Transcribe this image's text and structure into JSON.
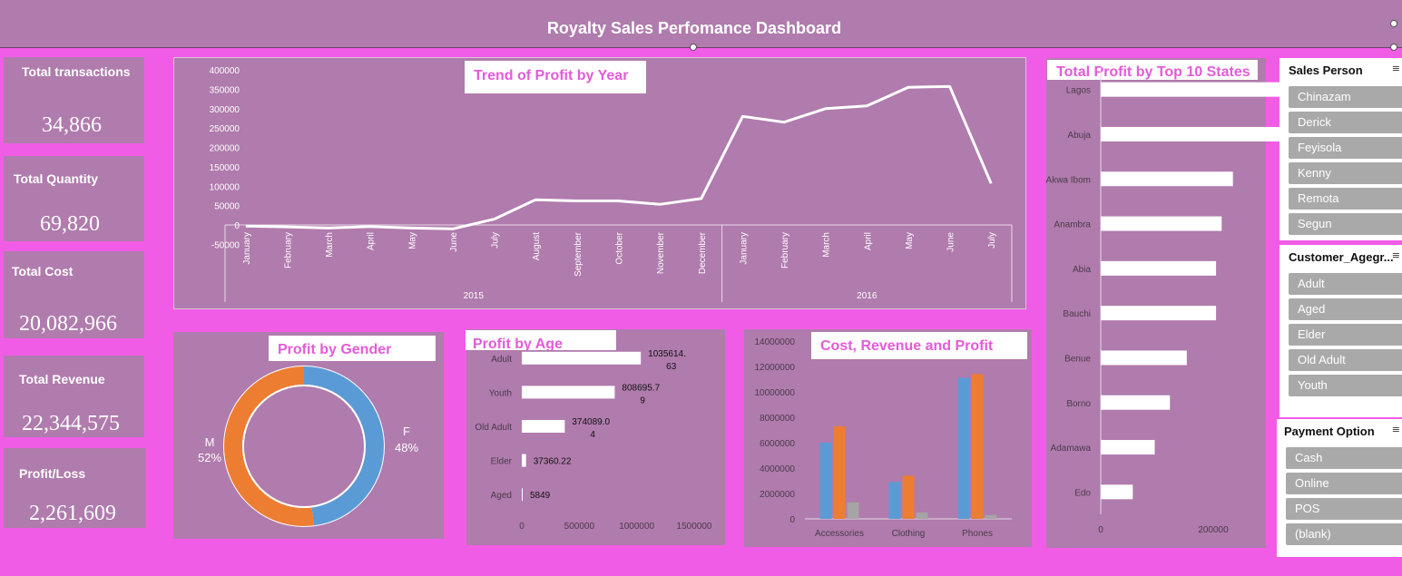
{
  "header": {
    "title": "Royalty Sales Perfomance Dashboard"
  },
  "kpis": [
    {
      "label": "Total transactions",
      "value": "34,866"
    },
    {
      "label": "Total Quantity",
      "value": "69,820"
    },
    {
      "label": "Total Cost",
      "value": "20,082,966"
    },
    {
      "label": "Total Revenue",
      "value": "22,344,575"
    },
    {
      "label": "Profit/Loss",
      "value": "2,261,609"
    }
  ],
  "slicers": {
    "sales_person": {
      "title": "Sales Person",
      "items": [
        "Chinazam",
        "Derick",
        "Feyisola",
        "Kenny",
        "Remota",
        "Segun"
      ]
    },
    "age_group": {
      "title": "Customer_Agegr...",
      "items": [
        "Adult",
        "Aged",
        "Elder",
        "Old Adult",
        "Youth"
      ]
    },
    "payment": {
      "title": "Payment Option",
      "items": [
        "Cash",
        "Online",
        "POS",
        "(blank)"
      ]
    }
  },
  "colors": {
    "background": "#f15ce6",
    "panel": "#b07bad",
    "title_text": "#e35bd9",
    "blue": "#5b9bd5",
    "orange": "#ed7d31",
    "gray": "#a5a5a5"
  },
  "chart_data": [
    {
      "type": "line",
      "title": "Trend of Profit by Year",
      "x": [
        "January",
        "February",
        "March",
        "April",
        "May",
        "June",
        "July",
        "August",
        "September",
        "October",
        "November",
        "December",
        "January",
        "February",
        "March",
        "April",
        "May",
        "June",
        "July"
      ],
      "groups": [
        {
          "label": "2015",
          "count": 12
        },
        {
          "label": "2016",
          "count": 7
        }
      ],
      "values": [
        -3000,
        -5000,
        -8000,
        -4000,
        -8000,
        -10000,
        15000,
        65000,
        62000,
        62000,
        53000,
        68000,
        280000,
        265000,
        300000,
        307000,
        355000,
        357000,
        107000
      ],
      "ylim": [
        -50000,
        400000
      ],
      "yticks": [
        "400000",
        "350000",
        "300000",
        "250000",
        "200000",
        "150000",
        "100000",
        "50000",
        "0",
        "-50000"
      ]
    },
    {
      "type": "bar",
      "orientation": "horizontal",
      "title": "Total Profit by Top 10 States",
      "categories": [
        "Lagos",
        "Abuja",
        "Akwa Ibom",
        "Anambra",
        "Abia",
        "Bauchi",
        "Benue",
        "Borno",
        "Adamawa",
        "Edo"
      ],
      "values": [
        390000,
        325000,
        235000,
        215000,
        205000,
        205000,
        153000,
        123000,
        96000,
        57000
      ],
      "xlim": [
        0,
        500000
      ],
      "xticks": [
        "0",
        "200000",
        "400000"
      ]
    },
    {
      "type": "pie",
      "title": "Profit by Gender",
      "slices": [
        {
          "name": "F",
          "value": 48,
          "label": "48%",
          "color": "#5b9bd5"
        },
        {
          "name": "M",
          "value": 52,
          "label": "52%",
          "color": "#ed7d31"
        }
      ]
    },
    {
      "type": "bar",
      "orientation": "horizontal",
      "title": "Profit by Age",
      "categories": [
        "Adult",
        "Youth",
        "Old Adult",
        "Elder",
        "Aged"
      ],
      "values": [
        1035614.63,
        808695.79,
        374089.04,
        37360.22,
        5849
      ],
      "data_labels": [
        [
          "1035614.",
          "63"
        ],
        [
          "808695.7",
          "9"
        ],
        [
          "374089.0",
          "4"
        ],
        [
          "37360.22"
        ],
        [
          "5849"
        ]
      ],
      "xlim": [
        0,
        1500000
      ],
      "xticks": [
        "0",
        "500000",
        "1000000",
        "1500000"
      ]
    },
    {
      "type": "bar",
      "title": "Cost, Revenue and Profit",
      "categories": [
        "Accessories",
        "Clothing",
        "Phones"
      ],
      "series": [
        {
          "values": [
            6000000,
            7300000,
            1300000
          ]
        },
        {
          "values": [
            2900000,
            3400000,
            500000
          ]
        },
        {
          "values": [
            11100000,
            11400000,
            300000
          ]
        }
      ],
      "series_colors": [
        "#5b9bd5",
        "#ed7d31",
        "#a5a5a5"
      ],
      "ylim": [
        0,
        14000000
      ],
      "yticks": [
        "14000000",
        "12000000",
        "10000000",
        "8000000",
        "6000000",
        "4000000",
        "2000000",
        "0"
      ]
    }
  ]
}
